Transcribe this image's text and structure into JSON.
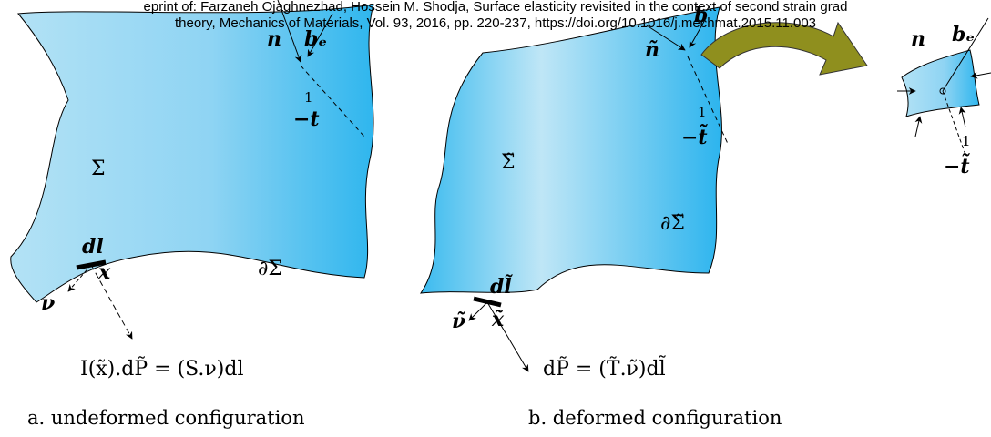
{
  "header": {
    "line1": "eprint of: Farzaneh Ojaghnezhad, Hossein M. Shodja, Surface elasticity revisited in the context of second strain grad",
    "line2": "theory, Mechanics of Materials, Vol. 93, 2016, pp. 220-237, https://doi.org/10.1016/j.mechmat.2015.11.003"
  },
  "panel_a": {
    "normal": "n",
    "body_force": "bₑ",
    "one": "1",
    "minus_t": "−t",
    "region": "Σ",
    "boundary": "∂Σ",
    "dl": "dl",
    "point": "x",
    "nu": "ν",
    "equation": "I(x̃).dP̃ = (S.ν)dl",
    "caption": "a. undeformed configuration"
  },
  "panel_b": {
    "normal": "ñ",
    "body_force": "b",
    "one": "1",
    "minus_t": "−t̃",
    "region": "Σ̃",
    "boundary": "∂Σ̃",
    "dl": "dl̃",
    "point": "x̃",
    "nu": "ν̃",
    "equation": "dP̃ = (T̃.ν̃)dl̃",
    "caption": "b. deformed configuration"
  },
  "inset": {
    "normal": "n",
    "body_force": "bₑ",
    "one": "1",
    "minus_t": "−t̃"
  }
}
